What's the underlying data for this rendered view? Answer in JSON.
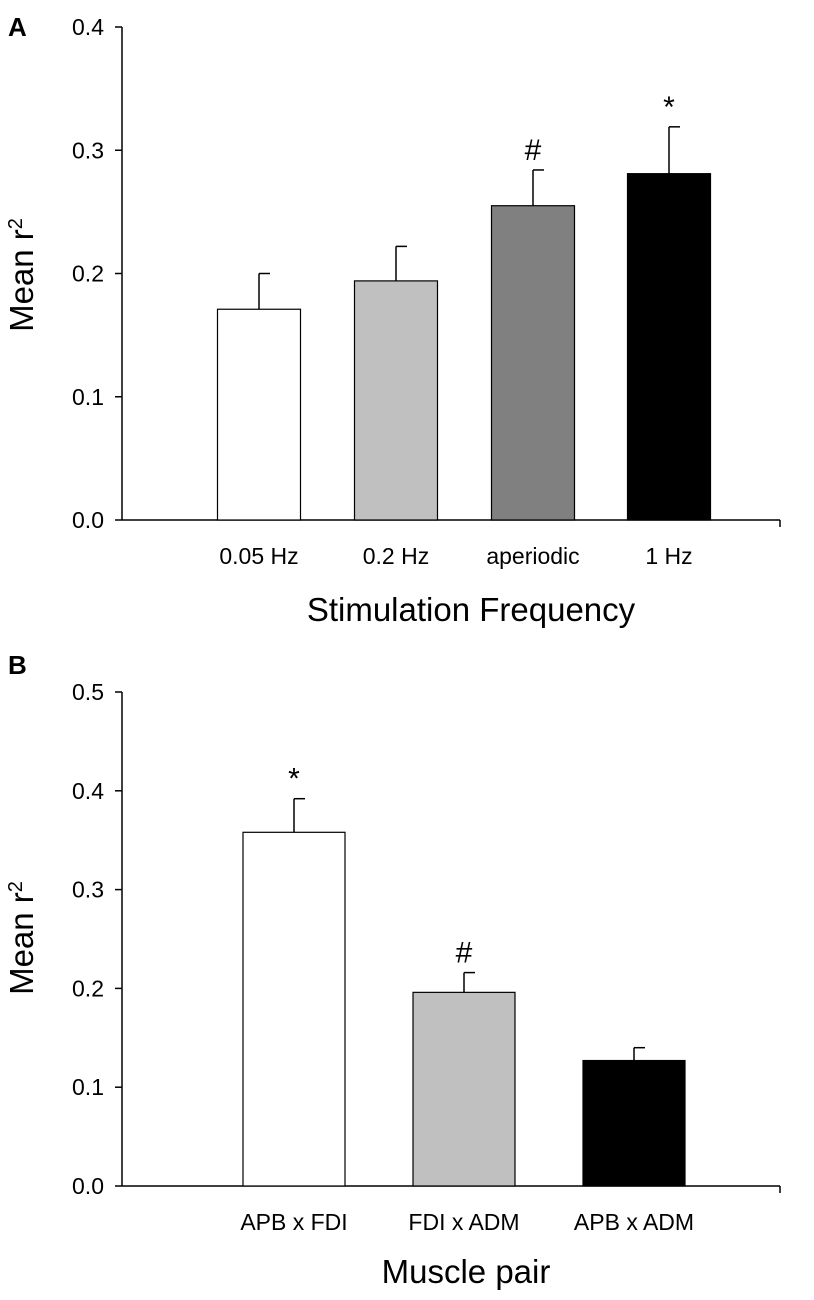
{
  "chart_data": [
    {
      "panel": "A",
      "type": "bar",
      "categories": [
        "0.05 Hz",
        "0.2 Hz",
        "aperiodic",
        "1 Hz"
      ],
      "values": [
        0.171,
        0.194,
        0.255,
        0.281
      ],
      "errors": [
        0.029,
        0.028,
        0.029,
        0.038
      ],
      "colors": [
        "#ffffff",
        "#c0c0c0",
        "#808080",
        "#000000"
      ],
      "annotations": [
        "",
        "",
        "#",
        "*"
      ],
      "xlabel": "Stimulation Frequency",
      "ylabel_base": "Mean r",
      "ylabel_sup": "2",
      "ylim": [
        0,
        0.4
      ],
      "yticks": [
        "0.0",
        "0.1",
        "0.2",
        "0.3",
        "0.4"
      ],
      "grid": false
    },
    {
      "panel": "B",
      "type": "bar",
      "categories": [
        "APB x FDI",
        "FDI x ADM",
        "APB x ADM"
      ],
      "values": [
        0.358,
        0.196,
        0.127
      ],
      "errors": [
        0.034,
        0.02,
        0.013
      ],
      "colors": [
        "#ffffff",
        "#c0c0c0",
        "#000000"
      ],
      "annotations": [
        "*",
        "#",
        ""
      ],
      "xlabel": "Muscle pair",
      "ylabel_base": "Mean r",
      "ylabel_sup": "2",
      "ylim": [
        0,
        0.5
      ],
      "yticks": [
        "0.0",
        "0.1",
        "0.2",
        "0.3",
        "0.4",
        "0.5"
      ],
      "grid": false
    }
  ]
}
